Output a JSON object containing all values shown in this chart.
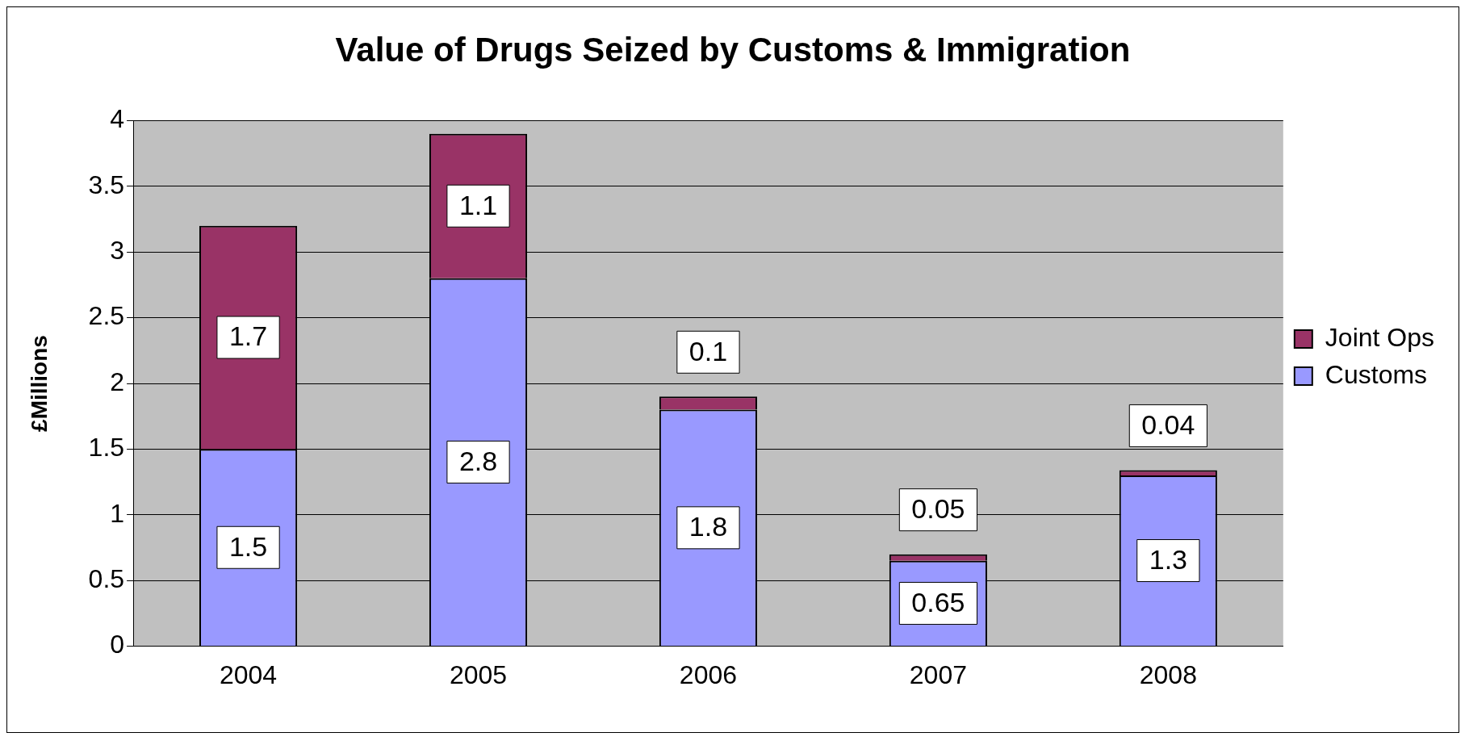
{
  "chart_data": {
    "type": "bar",
    "title": "Value of Drugs Seized by Customs & Immigration",
    "ylabel": "£Millions",
    "categories": [
      "2004",
      "2005",
      "2006",
      "2007",
      "2008"
    ],
    "series": [
      {
        "name": "Customs",
        "color": "#9999ff",
        "values": [
          1.5,
          2.8,
          1.8,
          0.65,
          1.3
        ]
      },
      {
        "name": "Joint Ops",
        "color": "#993366",
        "values": [
          1.7,
          1.1,
          0.1,
          0.05,
          0.04
        ]
      }
    ],
    "stacked": true,
    "ylim": [
      0,
      4
    ],
    "yticks": [
      0,
      0.5,
      1,
      1.5,
      2,
      2.5,
      3,
      3.5,
      4
    ],
    "grid": "y",
    "legend": "right",
    "data_labels": true
  }
}
